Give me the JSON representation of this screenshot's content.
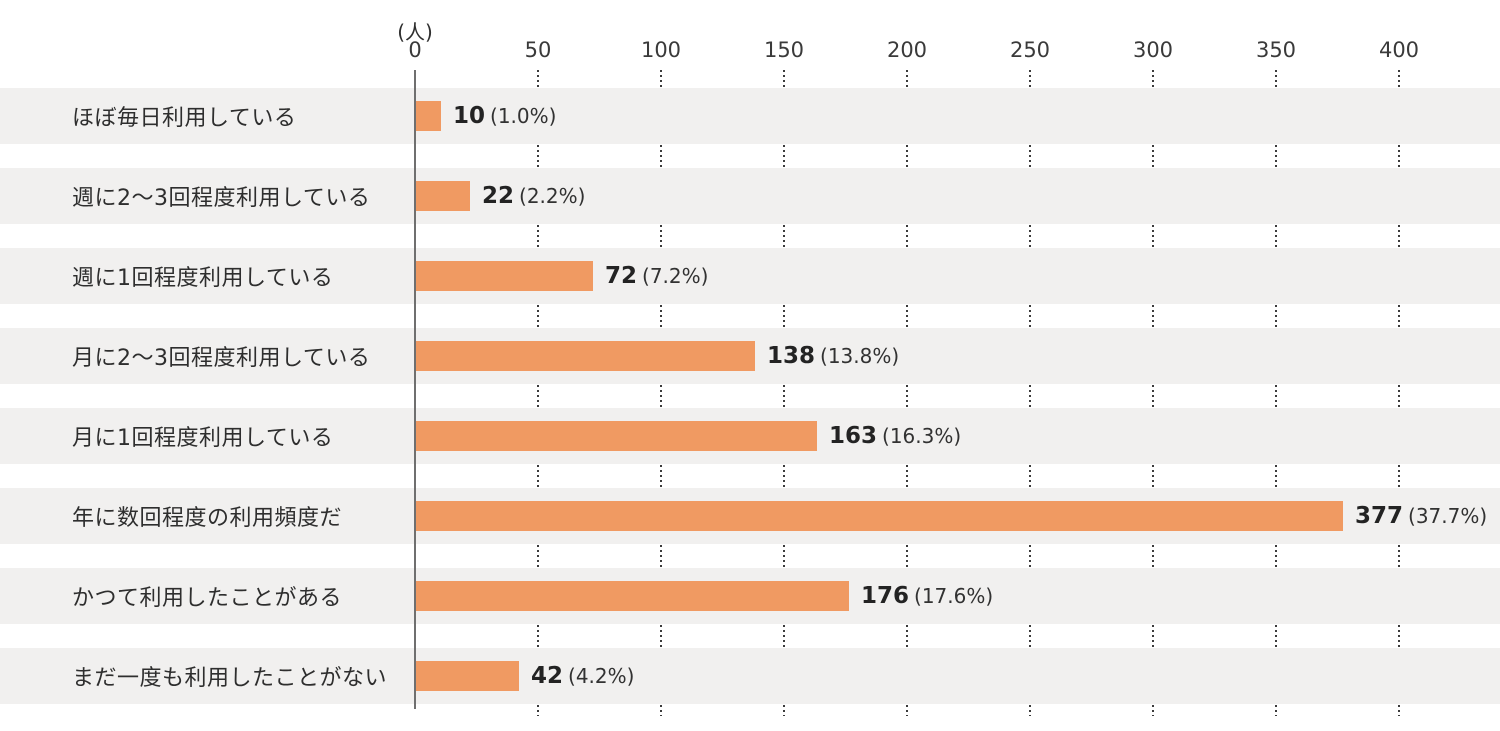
{
  "chart_data": {
    "type": "bar",
    "orientation": "horizontal",
    "title": "",
    "unit_label": "(人)",
    "x_axis": {
      "ticks": [
        "0",
        "50",
        "100",
        "150",
        "200",
        "250",
        "300",
        "350",
        "400"
      ],
      "tick_values": [
        0,
        50,
        100,
        150,
        200,
        250,
        300,
        350,
        400
      ],
      "range": [
        0,
        440
      ],
      "gridlines": "dotted-vertical-in-row-gaps"
    },
    "rows": [
      {
        "category": "ほぼ毎日利用している",
        "value": 10,
        "value_label": "10",
        "pct_label": "(1.0%)"
      },
      {
        "category": "週に2〜3回程度利用している",
        "value": 22,
        "value_label": "22",
        "pct_label": "(2.2%)"
      },
      {
        "category": "週に1回程度利用している",
        "value": 72,
        "value_label": "72",
        "pct_label": "(7.2%)"
      },
      {
        "category": "月に2〜3回程度利用している",
        "value": 138,
        "value_label": "138",
        "pct_label": "(13.8%)"
      },
      {
        "category": "月に1回程度利用している",
        "value": 163,
        "value_label": "163",
        "pct_label": "(16.3%)"
      },
      {
        "category": "年に数回程度の利用頻度だ",
        "value": 377,
        "value_label": "377",
        "pct_label": "(37.7%)"
      },
      {
        "category": "かつて利用したことがある",
        "value": 176,
        "value_label": "176",
        "pct_label": "(17.6%)"
      },
      {
        "category": "まだ一度も利用したことがない",
        "value": 42,
        "value_label": "42",
        "pct_label": "(4.2%)"
      }
    ],
    "colors": {
      "bar": "#f09a62",
      "row_background": "#f1f0ef",
      "axis_line": "#6f6f6f",
      "grid_dots": "#3b3b3b",
      "text": "#2e2e2e",
      "page_background": "#ffffff"
    },
    "legend": "none"
  }
}
